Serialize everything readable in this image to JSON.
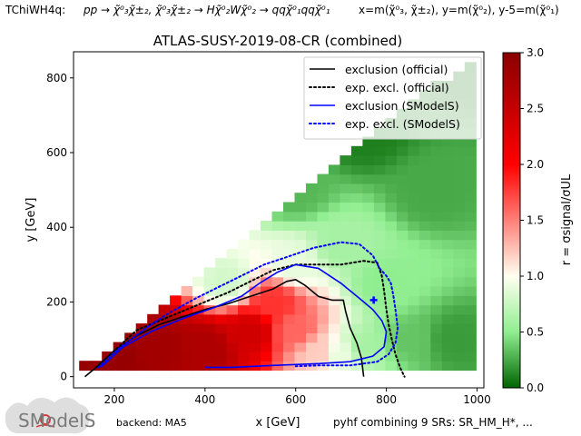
{
  "header": {
    "topology_label": "TChiWH4q:",
    "process": "pp → χ̃⁰₃χ̃±₂, χ̃⁰₃χ̃±₂ → Hχ̃⁰₂Wχ̃⁰₂ → qqχ̃⁰₁qqχ̃⁰₁",
    "axes_definition": "x=m(χ̃⁰₃, χ̃±₂), y=m(χ̃⁰₂), y-5=m(χ̃⁰₁)"
  },
  "footer": {
    "backend": "backend: MA5",
    "combination": "pyhf combining 9 SRs: SR_HM_H*, ...",
    "logo_text": "SModelS"
  },
  "colorbar": {
    "label": "r = σsignal/σUL",
    "ticks": [
      "0.0",
      "0.5",
      "1.0",
      "1.5",
      "2.0",
      "2.5",
      "3.0"
    ],
    "colors": [
      "#006400",
      "#90ee90",
      "#fffff0",
      "#ff0000",
      "#8b0000"
    ]
  },
  "chart_data": {
    "type": "heatmap",
    "title": "ATLAS-SUSY-2019-08-CR (combined)",
    "xlabel": "x [GeV]",
    "ylabel": "y [GeV]",
    "xlim": [
      110,
      1015
    ],
    "ylim": [
      -30,
      870
    ],
    "xticks": [
      "200",
      "400",
      "600",
      "800",
      "1000"
    ],
    "yticks": [
      "0",
      "200",
      "400",
      "600",
      "800"
    ],
    "zlim": [
      0,
      3
    ],
    "legend_position": "top-right",
    "legend": [
      {
        "label": "exclusion (official)",
        "color": "#000000",
        "style": "solid"
      },
      {
        "label": "exp. excl. (official)",
        "color": "#000000",
        "style": "dotted"
      },
      {
        "label": "exclusion (SModelS)",
        "color": "#0000ff",
        "style": "solid"
      },
      {
        "label": "exp. excl. (SModelS)",
        "color": "#0000ff",
        "style": "dotted"
      }
    ],
    "heatmap_region": {
      "x_range": [
        135,
        1005
      ],
      "y_min": 30,
      "upper_edge": [
        [
          135,
          30
        ],
        [
          300,
          170
        ],
        [
          500,
          380
        ],
        [
          700,
          590
        ],
        [
          860,
          740
        ],
        [
          1005,
          860
        ]
      ],
      "r_anchor_points": [
        {
          "x": 150,
          "y": 30,
          "r": 2.9
        },
        {
          "x": 200,
          "y": 60,
          "r": 2.9
        },
        {
          "x": 300,
          "y": 80,
          "r": 2.8
        },
        {
          "x": 400,
          "y": 80,
          "r": 2.7
        },
        {
          "x": 500,
          "y": 120,
          "r": 2.4
        },
        {
          "x": 550,
          "y": 200,
          "r": 1.8
        },
        {
          "x": 600,
          "y": 120,
          "r": 1.6
        },
        {
          "x": 650,
          "y": 70,
          "r": 1.2
        },
        {
          "x": 700,
          "y": 60,
          "r": 0.9
        },
        {
          "x": 750,
          "y": 80,
          "r": 0.6
        },
        {
          "x": 450,
          "y": 250,
          "r": 0.8
        },
        {
          "x": 600,
          "y": 300,
          "r": 0.9
        },
        {
          "x": 700,
          "y": 350,
          "r": 0.6
        },
        {
          "x": 800,
          "y": 250,
          "r": 0.5
        },
        {
          "x": 850,
          "y": 100,
          "r": 0.35
        },
        {
          "x": 950,
          "y": 100,
          "r": 0.2
        },
        {
          "x": 900,
          "y": 500,
          "r": 0.25
        },
        {
          "x": 600,
          "y": 500,
          "r": 0.3
        },
        {
          "x": 1000,
          "y": 850,
          "r": 0.05
        },
        {
          "x": 750,
          "y": 650,
          "r": 0.1
        }
      ]
    },
    "series": [
      {
        "name": "exclusion (official)",
        "color": "#000000",
        "style": "solid",
        "points": [
          [
            135,
            0
          ],
          [
            160,
            25
          ],
          [
            200,
            70
          ],
          [
            250,
            110
          ],
          [
            300,
            140
          ],
          [
            350,
            160
          ],
          [
            400,
            180
          ],
          [
            450,
            195
          ],
          [
            500,
            215
          ],
          [
            550,
            235
          ],
          [
            580,
            255
          ],
          [
            600,
            260
          ],
          [
            620,
            245
          ],
          [
            650,
            215
          ],
          [
            680,
            205
          ],
          [
            705,
            205
          ],
          [
            710,
            175
          ],
          [
            720,
            130
          ],
          [
            735,
            90
          ],
          [
            745,
            50
          ],
          [
            750,
            0
          ]
        ]
      },
      {
        "name": "exp. excl. (official)",
        "color": "#000000",
        "style": "dotted",
        "points": [
          [
            160,
            25
          ],
          [
            200,
            70
          ],
          [
            250,
            125
          ],
          [
            300,
            150
          ],
          [
            350,
            175
          ],
          [
            400,
            200
          ],
          [
            450,
            225
          ],
          [
            500,
            255
          ],
          [
            550,
            285
          ],
          [
            600,
            300
          ],
          [
            650,
            300
          ],
          [
            700,
            300
          ],
          [
            750,
            310
          ],
          [
            780,
            305
          ],
          [
            790,
            270
          ],
          [
            795,
            230
          ],
          [
            800,
            180
          ],
          [
            805,
            140
          ],
          [
            812,
            100
          ],
          [
            820,
            60
          ],
          [
            830,
            25
          ],
          [
            840,
            0
          ]
        ]
      },
      {
        "name": "exclusion (SModelS)",
        "color": "#0000ff",
        "style": "solid",
        "points": [
          [
            170,
            25
          ],
          [
            220,
            80
          ],
          [
            280,
            120
          ],
          [
            350,
            155
          ],
          [
            420,
            185
          ],
          [
            480,
            215
          ],
          [
            520,
            250
          ],
          [
            560,
            280
          ],
          [
            600,
            300
          ],
          [
            650,
            290
          ],
          [
            700,
            250
          ],
          [
            740,
            210
          ],
          [
            770,
            180
          ],
          [
            790,
            150
          ],
          [
            800,
            120
          ],
          [
            795,
            80
          ],
          [
            770,
            55
          ],
          [
            720,
            40
          ],
          [
            650,
            35
          ],
          [
            550,
            30
          ],
          [
            460,
            25
          ],
          [
            400,
            25
          ]
        ]
      },
      {
        "name": "exp. excl. (SModelS)",
        "color": "#0000ff",
        "style": "dotted",
        "points": [
          [
            165,
            25
          ],
          [
            210,
            75
          ],
          [
            270,
            130
          ],
          [
            320,
            170
          ],
          [
            380,
            210
          ],
          [
            430,
            240
          ],
          [
            480,
            270
          ],
          [
            530,
            300
          ],
          [
            580,
            320
          ],
          [
            640,
            345
          ],
          [
            700,
            360
          ],
          [
            740,
            355
          ],
          [
            770,
            325
          ],
          [
            785,
            290
          ],
          [
            800,
            270
          ],
          [
            810,
            250
          ],
          [
            815,
            220
          ],
          [
            820,
            180
          ],
          [
            825,
            130
          ],
          [
            820,
            90
          ],
          [
            805,
            60
          ],
          [
            780,
            40
          ],
          [
            720,
            30
          ],
          [
            650,
            30
          ],
          [
            600,
            28
          ]
        ]
      }
    ],
    "marker": {
      "x": 772,
      "y": 205,
      "label": "",
      "color": "#0000ff"
    }
  }
}
